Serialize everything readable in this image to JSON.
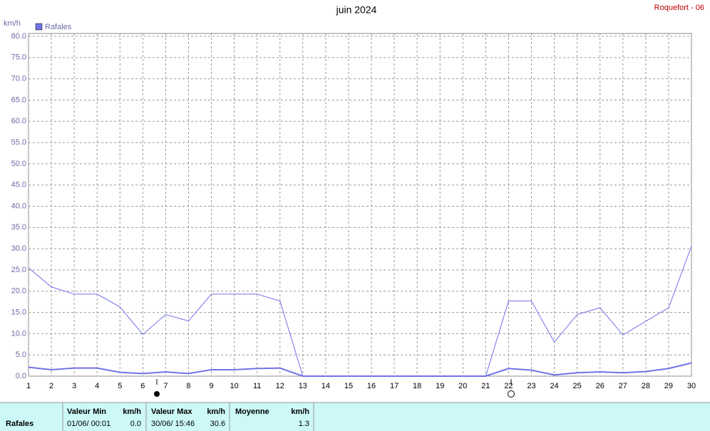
{
  "chart_data": {
    "type": "line",
    "title": "juin 2024",
    "subtitle": "Roquefort - 06",
    "y_label": "km/h",
    "x": [
      1,
      2,
      3,
      4,
      5,
      6,
      7,
      8,
      9,
      10,
      11,
      12,
      13,
      14,
      15,
      16,
      17,
      18,
      19,
      20,
      21,
      22,
      23,
      24,
      25,
      26,
      27,
      28,
      29,
      30
    ],
    "xlim": [
      1,
      30
    ],
    "xticks": [
      1,
      2,
      3,
      4,
      5,
      6,
      7,
      8,
      9,
      10,
      11,
      12,
      13,
      14,
      15,
      16,
      17,
      18,
      19,
      20,
      21,
      22,
      23,
      24,
      25,
      26,
      27,
      28,
      29,
      30
    ],
    "ylim": [
      0,
      80
    ],
    "yticks": [
      {
        "value": 0,
        "label": "0.0"
      },
      {
        "value": 5,
        "label": "5.0"
      },
      {
        "value": 10,
        "label": "10.0"
      },
      {
        "value": 15,
        "label": "15.0"
      },
      {
        "value": 20,
        "label": "20.0"
      },
      {
        "value": 25,
        "label": "25.0"
      },
      {
        "value": 30,
        "label": "30.0"
      },
      {
        "value": 35,
        "label": "35.0"
      },
      {
        "value": 40,
        "label": "40.0"
      },
      {
        "value": 45,
        "label": "45.0"
      },
      {
        "value": 50,
        "label": "50.0"
      },
      {
        "value": 55,
        "label": "55.0"
      },
      {
        "value": 60,
        "label": "60.0"
      },
      {
        "value": 65,
        "label": "65.0"
      },
      {
        "value": 70,
        "label": "70.0"
      },
      {
        "value": 75,
        "label": "75.0"
      },
      {
        "value": 80,
        "label": "80.0"
      }
    ],
    "grid": true,
    "series": [
      {
        "name": "Rafales",
        "color": "#7272e8",
        "values": [
          25.5,
          21,
          19.3,
          19.3,
          16.3,
          9.8,
          14.5,
          13,
          19.3,
          19.3,
          19.3,
          17.7,
          0,
          0,
          0,
          0,
          0,
          0,
          0,
          0,
          0,
          17.7,
          17.7,
          8,
          14.5,
          16.1,
          9.7,
          12.9,
          16.1,
          30.6
        ]
      },
      {
        "color": "#7272e8",
        "values": [
          2.1,
          1.5,
          1.9,
          1.9,
          0.9,
          0.6,
          1.0,
          0.6,
          1.5,
          1.5,
          1.8,
          1.9,
          0,
          0,
          0,
          0,
          0,
          0,
          0,
          0,
          0,
          1.8,
          1.4,
          0.3,
          0.8,
          1.0,
          0.8,
          1.1,
          1.8,
          3.1
        ]
      }
    ]
  },
  "summary": {
    "name": "Rafales",
    "min": {
      "header": "Valeur Min",
      "unit": "km/h",
      "date": "01/06/  00:01",
      "value": "0.0"
    },
    "max": {
      "header": "Valeur Max",
      "unit": "km/h",
      "date": "30/06/  15:46",
      "value": "30.6"
    },
    "mean": {
      "header": "Moyenne",
      "unit": "km/h",
      "value": "1.3"
    }
  }
}
